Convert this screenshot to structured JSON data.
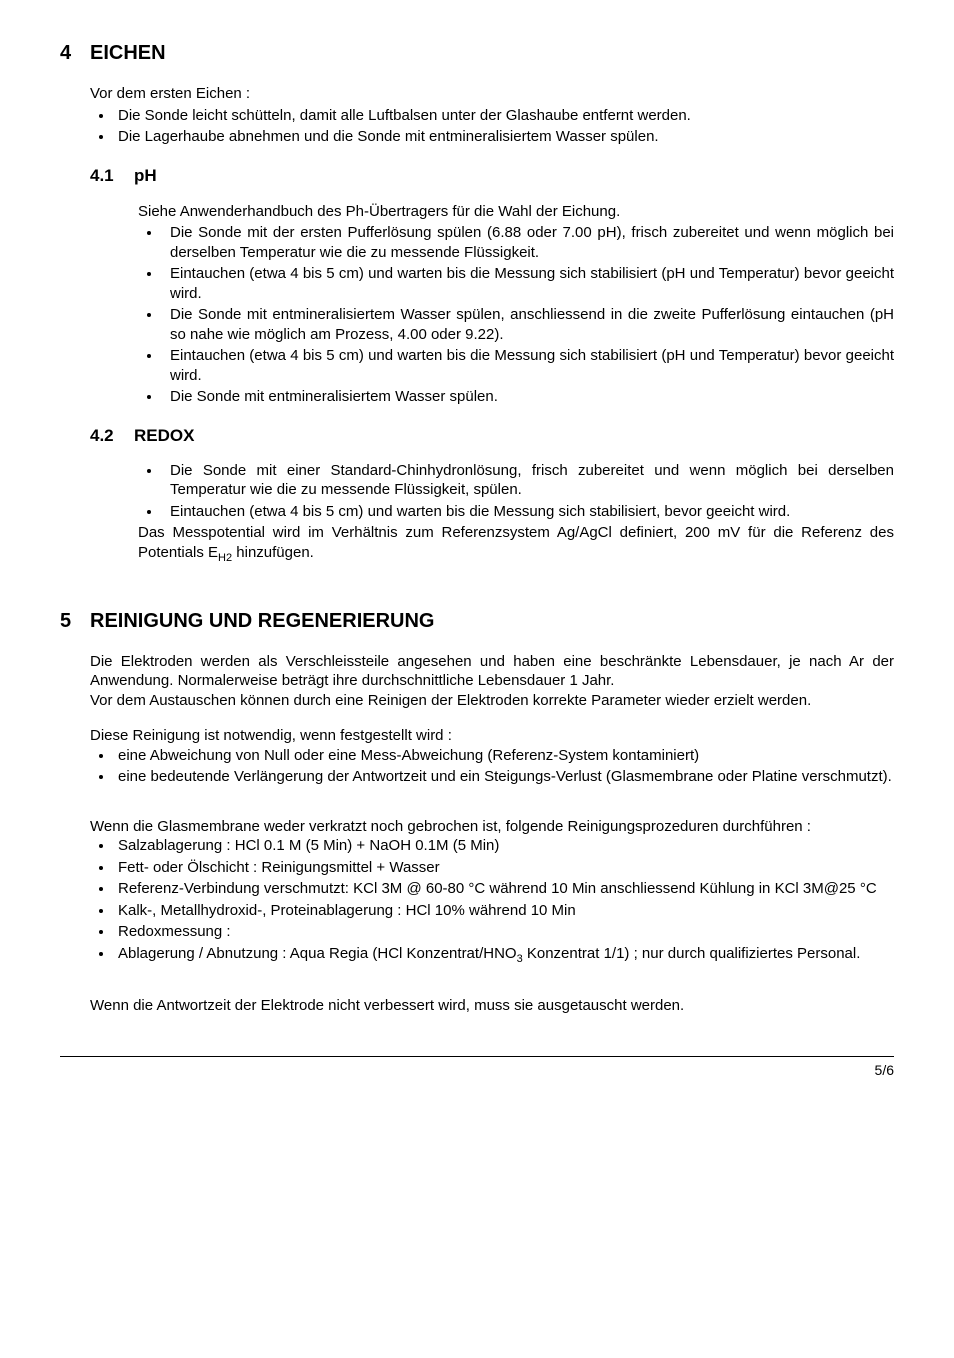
{
  "sec4": {
    "num": "4",
    "title": "EICHEN",
    "intro": "Vor dem ersten Eichen :",
    "bullets": [
      "Die Sonde leicht schütteln, damit alle Luftbalsen unter der Glashaube entfernt werden.",
      "Die Lagerhaube abnehmen und die Sonde mit entmineralisiertem Wasser spülen."
    ],
    "s41": {
      "num": "4.1",
      "title": "pH",
      "intro": "Siehe Anwenderhandbuch des Ph-Übertragers für die Wahl der Eichung.",
      "bullets": [
        "Die Sonde mit der ersten Pufferlösung spülen (6.88 oder 7.00 pH), frisch zubereitet und wenn möglich bei derselben Temperatur wie die zu messende Flüssigkeit.",
        "Eintauchen (etwa 4 bis 5 cm) und warten bis die Messung sich stabilisiert (pH und Temperatur) bevor geeicht wird.",
        "Die Sonde mit entmineralisiertem Wasser spülen, anschliessend in die zweite Pufferlösung eintauchen (pH so nahe wie möglich am Prozess, 4.00 oder 9.22).",
        "Eintauchen (etwa 4 bis 5 cm) und warten bis die Messung sich stabilisiert (pH und Temperatur) bevor geeicht wird.",
        "Die Sonde mit entmineralisiertem Wasser spülen."
      ]
    },
    "s42": {
      "num": "4.2",
      "title": "REDOX",
      "bullets": [
        "Die Sonde mit einer Standard-Chinhydronlösung, frisch zubereitet und wenn möglich bei derselben Temperatur wie die zu messende Flüssigkeit, spülen.",
        "Eintauchen (etwa 4 bis 5 cm) und warten bis die Messung sich stabilisiert, bevor geeicht wird."
      ],
      "post_html": "Das Messpotential wird im Verhältnis zum Referenzsystem Ag/AgCl definiert, 200 mV für die Referenz des Potentials  E<sub>H2</sub> hinzufügen."
    }
  },
  "sec5": {
    "num": "5",
    "title": "REINIGUNG UND REGENERIERUNG",
    "p1": "Die Elektroden werden als Verschleissteile angesehen und haben eine beschränkte Lebensdauer, je nach Ar der Anwendung. Normalerweise beträgt ihre durchschnittliche Lebensdauer 1 Jahr.",
    "p2": "Vor dem Austauschen können durch eine Reinigen der Elektroden korrekte Parameter wieder erzielt werden.",
    "p3": "Diese Reinigung ist notwendig, wenn festgestellt wird :",
    "bullets1": [
      "eine Abweichung von Null oder eine Mess-Abweichung (Referenz-System kontaminiert)",
      "eine bedeutende Verlängerung der Antwortzeit und ein Steigungs-Verlust (Glasmembrane oder Platine verschmutzt)."
    ],
    "p4": "Wenn die Glasmembrane weder verkratzt noch gebrochen ist, folgende Reinigungsprozeduren durchführen :",
    "bullets2": [
      "Salzablagerung : HCl 0.1 M (5 Min) + NaOH 0.1M (5 Min)",
      "Fett- oder Ölschicht : Reinigungsmittel + Wasser",
      "Referenz-Verbindung verschmutzt: KCl 3M @ 60-80 °C während 10 Min anschliessend Kühlung in KCl 3M@25 °C",
      "Kalk-, Metallhydroxid-, Proteinablagerung : HCl 10% während 10 Min",
      "Redoxmessung :"
    ],
    "bullet2_last_html": "Ablagerung / Abnutzung : Aqua Regia (HCl Konzentrat/HNO<sub>3</sub> Konzentrat 1/1) ; nur durch qualifiziertes Personal.",
    "p5": "Wenn die Antwortzeit der Elektrode nicht verbessert wird, muss sie ausgetauscht werden."
  },
  "footer": "5/6"
}
